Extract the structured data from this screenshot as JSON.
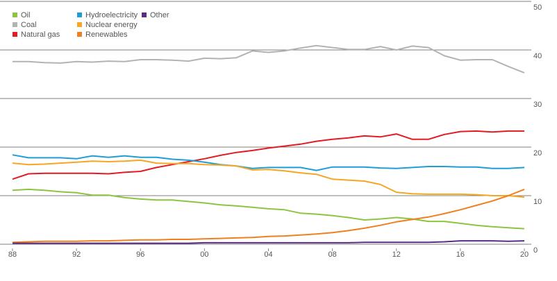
{
  "chart_data": {
    "type": "line",
    "x": [
      1988,
      1989,
      1990,
      1991,
      1992,
      1993,
      1994,
      1995,
      1996,
      1997,
      1998,
      1999,
      2000,
      2001,
      2002,
      2003,
      2004,
      2005,
      2006,
      2007,
      2008,
      2009,
      2010,
      2011,
      2012,
      2013,
      2014,
      2015,
      2016,
      2017,
      2018,
      2019,
      2020
    ],
    "xlim": [
      1988,
      2020
    ],
    "xticks": [
      {
        "value": 1988,
        "label": "88"
      },
      {
        "value": 1992,
        "label": "92"
      },
      {
        "value": 1996,
        "label": "96"
      },
      {
        "value": 2000,
        "label": "00"
      },
      {
        "value": 2004,
        "label": "04"
      },
      {
        "value": 2008,
        "label": "08"
      },
      {
        "value": 2012,
        "label": "12"
      },
      {
        "value": 2016,
        "label": "16"
      },
      {
        "value": 2020,
        "label": "20"
      }
    ],
    "ylim": [
      0,
      50
    ],
    "yticks": [
      0,
      10,
      20,
      30,
      40,
      50
    ],
    "grid": true,
    "legend": "top-left",
    "series": [
      {
        "name": "Oil",
        "color": "#8cc63f",
        "values": [
          11.1,
          11.3,
          11.1,
          10.8,
          10.6,
          10.1,
          10.1,
          9.6,
          9.3,
          9.1,
          9.1,
          8.8,
          8.5,
          8.1,
          7.9,
          7.6,
          7.3,
          7.1,
          6.4,
          6.2,
          5.9,
          5.5,
          5.0,
          5.2,
          5.5,
          5.2,
          4.7,
          4.7,
          4.3,
          3.9,
          3.6,
          3.4,
          3.2
        ]
      },
      {
        "name": "Coal",
        "color": "#b3b3b3",
        "values": [
          37.6,
          37.6,
          37.4,
          37.3,
          37.6,
          37.5,
          37.7,
          37.6,
          38.0,
          38.0,
          37.9,
          37.7,
          38.3,
          38.2,
          38.4,
          39.8,
          39.5,
          39.8,
          40.4,
          40.9,
          40.5,
          40.1,
          40.1,
          40.7,
          40.0,
          40.8,
          40.5,
          38.8,
          37.9,
          38.0,
          38.0,
          36.6,
          35.3
        ]
      },
      {
        "name": "Natural gas",
        "color": "#e31b23",
        "values": [
          13.4,
          14.5,
          14.6,
          14.6,
          14.6,
          14.6,
          14.5,
          14.8,
          15.0,
          15.8,
          16.4,
          17.0,
          17.6,
          18.3,
          18.9,
          19.3,
          19.8,
          20.2,
          20.6,
          21.2,
          21.6,
          21.9,
          22.3,
          22.1,
          22.7,
          21.6,
          21.6,
          22.6,
          23.2,
          23.3,
          23.1,
          23.3,
          23.3
        ]
      },
      {
        "name": "Hydroelectricity",
        "color": "#1e9ed9",
        "values": [
          18.4,
          17.8,
          17.8,
          17.8,
          17.6,
          18.2,
          17.9,
          18.2,
          17.9,
          17.9,
          17.5,
          17.3,
          16.9,
          16.4,
          16.1,
          15.6,
          15.8,
          15.8,
          15.8,
          15.2,
          15.9,
          15.9,
          15.9,
          15.7,
          15.6,
          15.8,
          16.0,
          16.0,
          15.9,
          15.9,
          15.6,
          15.6,
          15.8
        ]
      },
      {
        "name": "Nuclear energy",
        "color": "#f5a623",
        "values": [
          16.7,
          16.4,
          16.5,
          16.7,
          16.9,
          17.1,
          17.0,
          17.1,
          17.3,
          16.7,
          16.6,
          16.6,
          16.4,
          16.3,
          16.1,
          15.3,
          15.4,
          15.1,
          14.7,
          14.4,
          13.4,
          13.2,
          13.0,
          12.3,
          10.7,
          10.4,
          10.3,
          10.3,
          10.3,
          10.2,
          10.0,
          10.0,
          9.7
        ]
      },
      {
        "name": "Renewables",
        "color": "#f07f1e",
        "values": [
          0.4,
          0.5,
          0.6,
          0.6,
          0.6,
          0.7,
          0.7,
          0.8,
          0.9,
          0.9,
          1.0,
          1.0,
          1.1,
          1.2,
          1.3,
          1.4,
          1.6,
          1.7,
          1.9,
          2.1,
          2.4,
          2.8,
          3.3,
          3.9,
          4.6,
          5.1,
          5.6,
          6.3,
          7.1,
          8.0,
          8.9,
          10.0,
          11.3
        ]
      },
      {
        "name": "Other",
        "color": "#5b2c83",
        "values": [
          0.2,
          0.2,
          0.2,
          0.2,
          0.2,
          0.2,
          0.2,
          0.2,
          0.2,
          0.2,
          0.2,
          0.2,
          0.3,
          0.3,
          0.3,
          0.3,
          0.3,
          0.3,
          0.3,
          0.3,
          0.3,
          0.3,
          0.4,
          0.4,
          0.4,
          0.4,
          0.4,
          0.5,
          0.7,
          0.7,
          0.7,
          0.6,
          0.7
        ]
      }
    ]
  }
}
